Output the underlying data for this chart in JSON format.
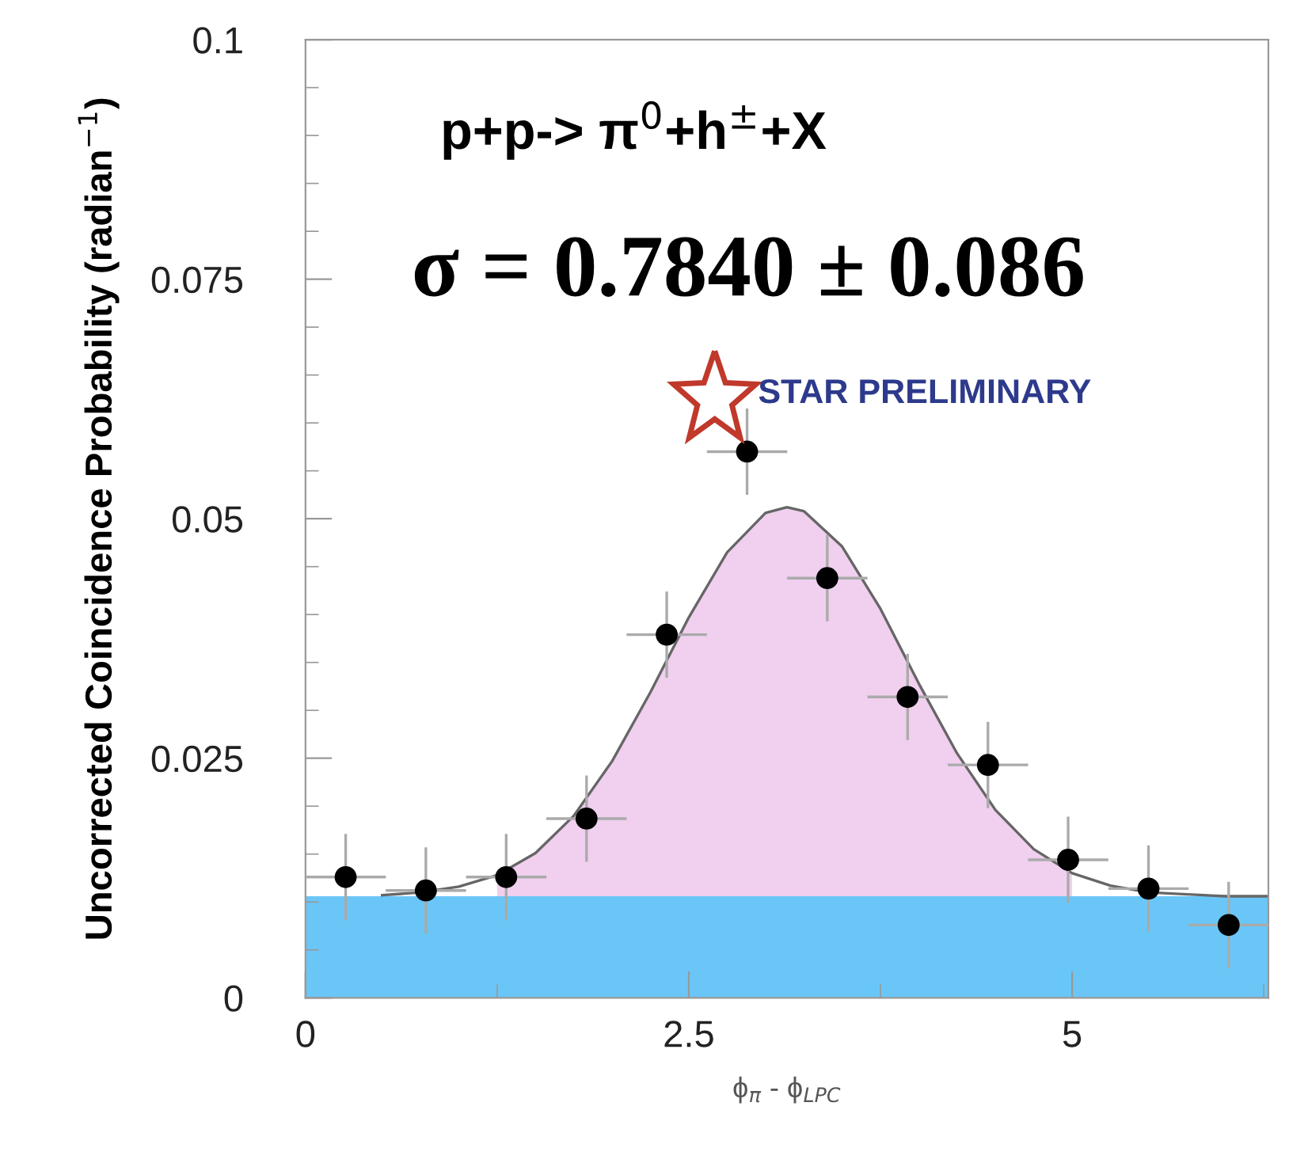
{
  "chart_data": {
    "type": "scatter",
    "xlabel": "ϕ$_{π}$ - ϕ$_{LPC}$",
    "ylabel": "Uncorrected Coincidence Probability (radian$^{−1}$)",
    "annotations": [
      "p+p-> π$^{0}$+h$^{±}$+X",
      "σ = 0.7840 ± 0.086",
      "STAR PRELIMINARY"
    ],
    "xlim": [
      0,
      6.28
    ],
    "ylim": [
      0,
      0.1
    ],
    "xticks": [
      0,
      2.5,
      5
    ],
    "yticks": [
      0,
      0.025,
      0.05,
      0.075,
      0.1
    ],
    "grid": false,
    "bands": [
      {
        "axis": "y",
        "from": 0,
        "to": 0.0106,
        "color": "#6ac6f7"
      }
    ],
    "series": [
      {
        "type": "area",
        "color": "#f0d0ee",
        "x": [
          1.25,
          1.5,
          1.75,
          2.0,
          2.25,
          2.5,
          2.75,
          3.0,
          3.14,
          3.25,
          3.5,
          3.75,
          4.0,
          4.25,
          4.5,
          4.75,
          5.0
        ],
        "values": [
          0.0128,
          0.0151,
          0.019,
          0.0247,
          0.0319,
          0.0397,
          0.0465,
          0.0506,
          0.0512,
          0.0508,
          0.0471,
          0.0406,
          0.0328,
          0.0255,
          0.0196,
          0.0155,
          0.013
        ]
      },
      {
        "type": "line",
        "color": "#666666",
        "marker": "none",
        "line_style": "solid",
        "x": [
          0.5,
          0.75,
          1.0,
          1.25,
          1.5,
          1.75,
          2.0,
          2.25,
          2.5,
          2.75,
          3.0,
          3.14,
          3.25,
          3.5,
          3.75,
          4.0,
          4.25,
          4.5,
          4.75,
          5.0,
          5.25,
          5.5,
          5.75,
          6.0,
          6.28
        ],
        "values": [
          0.0107,
          0.011,
          0.0116,
          0.0128,
          0.0151,
          0.019,
          0.0247,
          0.0319,
          0.0397,
          0.0465,
          0.0506,
          0.0512,
          0.0508,
          0.0471,
          0.0406,
          0.0328,
          0.0255,
          0.0196,
          0.0155,
          0.013,
          0.0117,
          0.011,
          0.0108,
          0.0106,
          0.0106
        ]
      },
      {
        "color": "#000000",
        "marker": "circle",
        "x": [
          0.262,
          0.785,
          1.309,
          1.833,
          2.356,
          2.88,
          3.403,
          3.927,
          4.451,
          4.974,
          5.498,
          6.021
        ],
        "values": [
          0.0126,
          0.0112,
          0.0126,
          0.0187,
          0.0379,
          0.057,
          0.0438,
          0.0314,
          0.0243,
          0.0144,
          0.0114,
          0.0076
        ],
        "errors": [
          0.0045,
          0.0045,
          0.0045,
          0.0045,
          0.0045,
          0.0045,
          0.0045,
          0.0045,
          0.0045,
          0.0045,
          0.0045,
          0.0045
        ],
        "xerrors": [
          0.262,
          0.262,
          0.262,
          0.262,
          0.262,
          0.262,
          0.262,
          0.262,
          0.262,
          0.262,
          0.262,
          0.262
        ]
      }
    ]
  }
}
